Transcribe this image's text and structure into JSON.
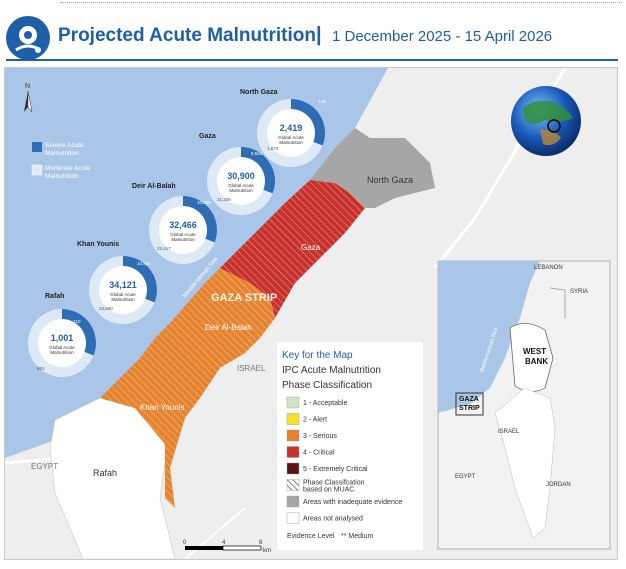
{
  "header": {
    "title": "Projected Acute Malnutrition",
    "separator": "|",
    "date_range": "1 December 2025 - 15 April  2026"
  },
  "map": {
    "north_arrow": "N",
    "legend_small": {
      "severe": "Severe Acute\nMalnutrition",
      "moderate": "Moderate Acute\nMalnutrition"
    },
    "sea_label": "Mediterranean Sea",
    "strip_label": "GAZA STRIP",
    "country_labels": {
      "israel": "ISRAEL",
      "egypt": "EGYPT"
    },
    "governorates": [
      {
        "name": "North Gaza",
        "phase": "Areas with inadequate evidence"
      },
      {
        "name": "Gaza",
        "phase": "4 - Critical"
      },
      {
        "name": "Deir Al-Balah",
        "phase": "3 - Serious"
      },
      {
        "name": "Khan Younis",
        "phase": "3 - Serious"
      },
      {
        "name": "Rafah",
        "phase": "Areas not analysed"
      }
    ],
    "donuts": [
      {
        "name": "North Gaza",
        "total": "2,419",
        "label": "Global Acute\nMalnutrition",
        "severe": "749",
        "moderate": "1,670",
        "severe_value": 749,
        "moderate_value": 1670
      },
      {
        "name": "Gaza",
        "total": "30,900",
        "label": "Global Acute\nMalnutrition",
        "severe": "9,564",
        "moderate": "21,336",
        "severe_value": 9564,
        "moderate_value": 21336
      },
      {
        "name": "Deir Al-Balah",
        "total": "32,466",
        "label": "Global Acute\nMalnutrition",
        "severe": "10,049",
        "moderate": "22,417",
        "severe_value": 10049,
        "moderate_value": 22417
      },
      {
        "name": "Khan Younis",
        "total": "34,121",
        "label": "Global Acute\nMalnutrition",
        "severe": "10,561",
        "moderate": "23,560",
        "severe_value": 10561,
        "moderate_value": 23560
      },
      {
        "name": "Rafah",
        "total": "1,001",
        "label": "Global Acute\nMalnutrition",
        "severe": "310",
        "moderate": "691",
        "severe_value": 310,
        "moderate_value": 691
      }
    ],
    "key": {
      "title": "Key for the Map",
      "subtitle_line1": "IPC Acute Malnutrition",
      "subtitle_line2": "Phase Classification",
      "items": [
        {
          "label": "1 - Acceptable",
          "color": "#cde6c7"
        },
        {
          "label": "2 - Alert",
          "color": "#f5e02c"
        },
        {
          "label": "3 - Serious",
          "color": "#e6832f"
        },
        {
          "label": "4 - Critical",
          "color": "#c8322c"
        },
        {
          "label": "5 - Extremely Critical",
          "color": "#5a1512"
        },
        {
          "label": "Phase Classifcation\nbased on MUAC",
          "color": "hatch"
        },
        {
          "label": "Areas with inadequate evidence",
          "color": "#a6a6a6"
        },
        {
          "label": "Areas not analysed",
          "color": "#ffffff"
        }
      ],
      "evidence_label": "Evidence Level",
      "evidence_value": "** Medium"
    },
    "scale": {
      "zero": "0",
      "mid": "4",
      "max": "8",
      "unit": "km"
    },
    "inset": {
      "labels": {
        "lebanon": "LEBANON",
        "syria": "SYRIA",
        "west_bank": "WEST\nBANK",
        "gaza_strip": "GAZA\nSTRIP",
        "israel": "ISRAEL",
        "egypt": "EGYPT",
        "jordan": "JORDAN",
        "sea": "Mediterranean Sea"
      }
    },
    "colors": {
      "sea": "#a9c6e8",
      "land": "#eeeeee",
      "brand": "#1e5fa8",
      "severe": "#2e6db4",
      "moderate": "#ddeaf6"
    }
  }
}
